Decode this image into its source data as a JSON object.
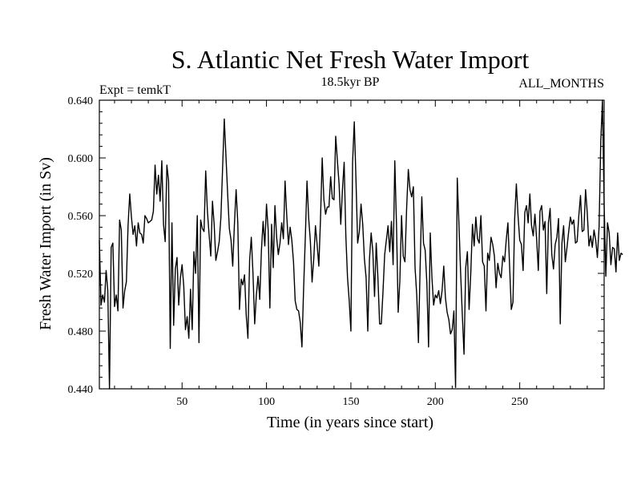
{
  "chart_data": {
    "type": "line",
    "title": "S. Atlantic Net Fresh Water Import",
    "subtitle": "18.5kyr BP",
    "left_annotation": "Expt = temkT",
    "right_annotation": "ALL_MONTHS",
    "xlabel": "Time (in years since start)",
    "ylabel": "Fresh Water Import (in Sv)",
    "xlim": [
      1,
      300
    ],
    "ylim": [
      0.44,
      0.64
    ],
    "x_ticks": [
      50,
      100,
      150,
      200,
      250
    ],
    "y_ticks": [
      0.44,
      0.48,
      0.52,
      0.56,
      0.6,
      0.64
    ],
    "y_tick_labels": [
      "0.440",
      "0.480",
      "0.520",
      "0.560",
      "0.600",
      "0.640"
    ],
    "series": [
      {
        "name": "Fresh Water Import",
        "x_start": 1,
        "x_step": 1,
        "values": [
          0.543,
          0.498,
          0.505,
          0.5,
          0.522,
          0.508,
          0.44,
          0.538,
          0.541,
          0.497,
          0.505,
          0.494,
          0.557,
          0.55,
          0.496,
          0.508,
          0.514,
          0.553,
          0.575,
          0.559,
          0.547,
          0.553,
          0.539,
          0.555,
          0.548,
          0.547,
          0.541,
          0.56,
          0.558,
          0.555,
          0.556,
          0.557,
          0.563,
          0.595,
          0.575,
          0.588,
          0.57,
          0.598,
          0.554,
          0.542,
          0.595,
          0.584,
          0.468,
          0.555,
          0.484,
          0.523,
          0.531,
          0.498,
          0.517,
          0.526,
          0.511,
          0.481,
          0.49,
          0.475,
          0.509,
          0.481,
          0.535,
          0.52,
          0.56,
          0.472,
          0.557,
          0.551,
          0.549,
          0.591,
          0.563,
          0.547,
          0.532,
          0.57,
          0.554,
          0.529,
          0.535,
          0.542,
          0.559,
          0.593,
          0.627,
          0.601,
          0.575,
          0.551,
          0.543,
          0.525,
          0.554,
          0.578,
          0.555,
          0.495,
          0.516,
          0.512,
          0.519,
          0.491,
          0.475,
          0.529,
          0.545,
          0.52,
          0.485,
          0.505,
          0.518,
          0.502,
          0.536,
          0.556,
          0.539,
          0.568,
          0.55,
          0.496,
          0.554,
          0.524,
          0.567,
          0.545,
          0.533,
          0.541,
          0.555,
          0.544,
          0.584,
          0.56,
          0.54,
          0.552,
          0.543,
          0.528,
          0.501,
          0.495,
          0.494,
          0.486,
          0.469,
          0.51,
          0.545,
          0.584,
          0.558,
          0.542,
          0.514,
          0.53,
          0.553,
          0.54,
          0.525,
          0.558,
          0.6,
          0.571,
          0.561,
          0.566,
          0.566,
          0.587,
          0.572,
          0.571,
          0.615,
          0.598,
          0.582,
          0.554,
          0.578,
          0.597,
          0.546,
          0.517,
          0.501,
          0.48,
          0.597,
          0.625,
          0.585,
          0.541,
          0.549,
          0.568,
          0.554,
          0.53,
          0.517,
          0.48,
          0.53,
          0.548,
          0.535,
          0.504,
          0.541,
          0.517,
          0.485,
          0.485,
          0.507,
          0.533,
          0.543,
          0.553,
          0.535,
          0.556,
          0.526,
          0.598,
          0.554,
          0.493,
          0.515,
          0.56,
          0.532,
          0.528,
          0.565,
          0.592,
          0.578,
          0.573,
          0.58,
          0.524,
          0.505,
          0.472,
          0.524,
          0.573,
          0.541,
          0.536,
          0.513,
          0.469,
          0.548,
          0.517,
          0.498,
          0.505,
          0.503,
          0.508,
          0.499,
          0.508,
          0.525,
          0.503,
          0.493,
          0.488,
          0.478,
          0.481,
          0.494,
          0.441,
          0.586,
          0.554,
          0.52,
          0.491,
          0.464,
          0.524,
          0.535,
          0.495,
          0.52,
          0.554,
          0.539,
          0.559,
          0.544,
          0.541,
          0.56,
          0.528,
          0.525,
          0.494,
          0.534,
          0.529,
          0.545,
          0.54,
          0.532,
          0.51,
          0.527,
          0.52,
          0.517,
          0.532,
          0.528,
          0.543,
          0.555,
          0.525,
          0.495,
          0.5,
          0.558,
          0.582,
          0.56,
          0.543,
          0.54,
          0.522,
          0.562,
          0.567,
          0.555,
          0.575,
          0.553,
          0.546,
          0.561,
          0.544,
          0.522,
          0.563,
          0.567,
          0.55,
          0.556,
          0.506,
          0.555,
          0.565,
          0.533,
          0.523,
          0.54,
          0.545,
          0.558,
          0.485,
          0.541,
          0.553,
          0.528,
          0.538,
          0.549,
          0.559,
          0.554,
          0.557,
          0.541,
          0.542,
          0.56,
          0.574,
          0.549,
          0.55,
          0.578,
          0.562,
          0.539,
          0.546,
          0.538,
          0.55,
          0.543,
          0.531,
          0.552,
          0.611,
          0.64,
          0.568,
          0.518,
          0.555,
          0.548,
          0.526,
          0.538,
          0.537,
          0.521,
          0.548,
          0.529,
          0.534,
          0.533
        ]
      }
    ]
  }
}
